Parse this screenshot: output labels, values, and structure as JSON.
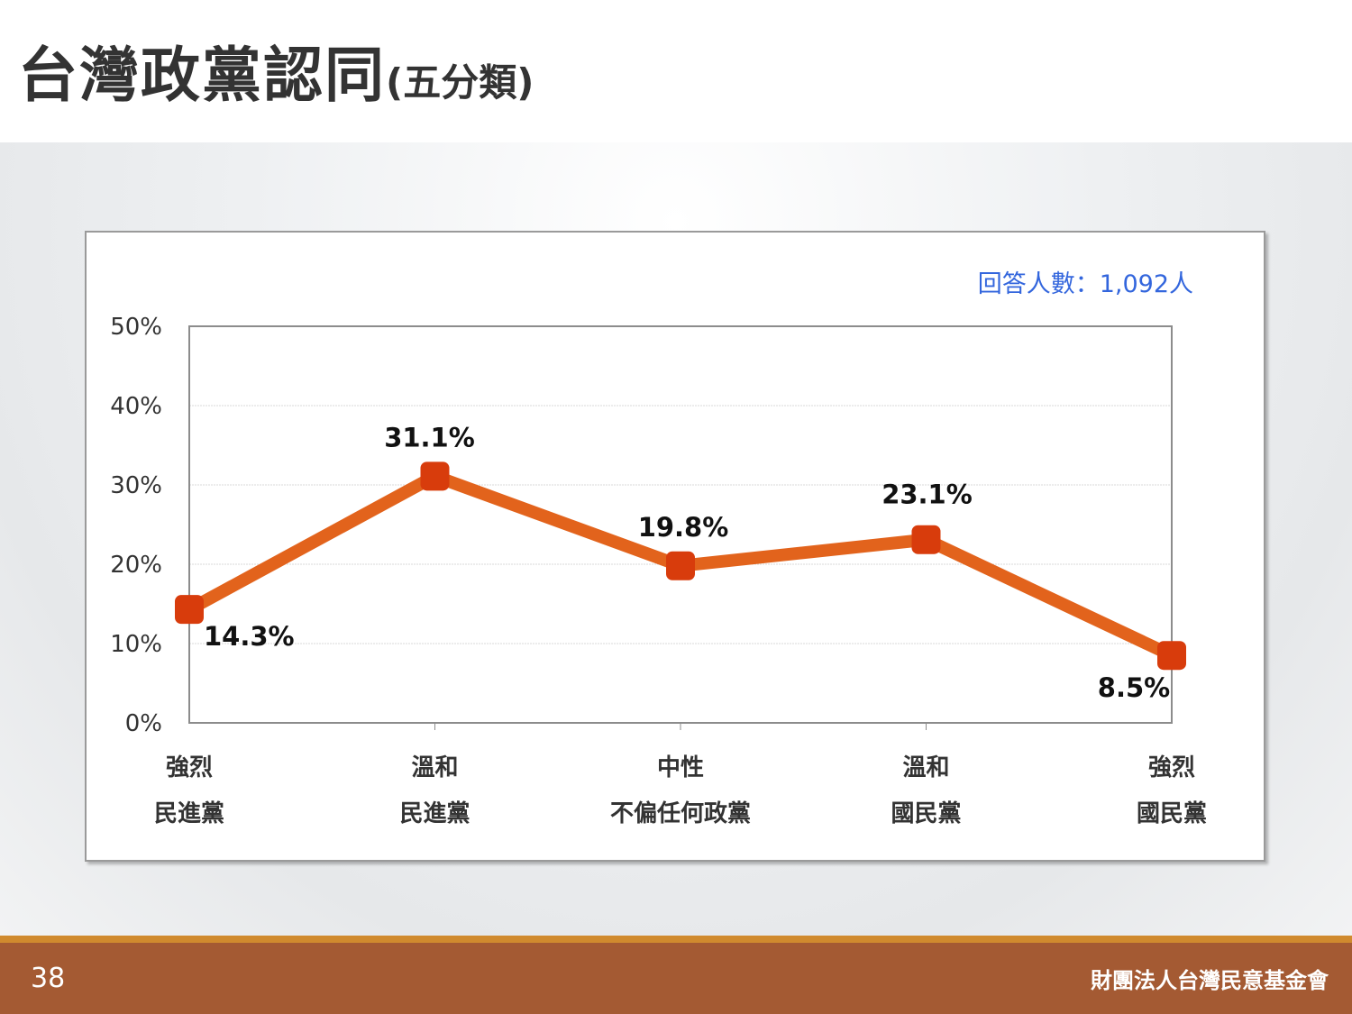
{
  "slide": {
    "title_main": "台灣政黨認同",
    "title_sub": "(五分類)",
    "page_number": "38",
    "organization": "財團法人台灣民意基金會"
  },
  "colors": {
    "line": "#e2631c",
    "marker": "#d83c0c",
    "note": "#3366dd",
    "footer": "#a45a33",
    "footer_line": "#d08a2e"
  },
  "chart_data": {
    "type": "line",
    "note": "回答人數：1,092人",
    "categories": [
      [
        "強烈",
        "民進黨"
      ],
      [
        "溫和",
        "民進黨"
      ],
      [
        "中性",
        "不偏任何政黨"
      ],
      [
        "溫和",
        "國民黨"
      ],
      [
        "強烈",
        "國民黨"
      ]
    ],
    "values": [
      14.3,
      31.1,
      19.8,
      23.1,
      8.5
    ],
    "data_labels": [
      "14.3%",
      "31.1%",
      "19.8%",
      "23.1%",
      "8.5%"
    ],
    "y_ticks": [
      "0%",
      "10%",
      "20%",
      "30%",
      "40%",
      "50%"
    ],
    "ylim": [
      0,
      50
    ],
    "grid": true,
    "legend": false
  }
}
